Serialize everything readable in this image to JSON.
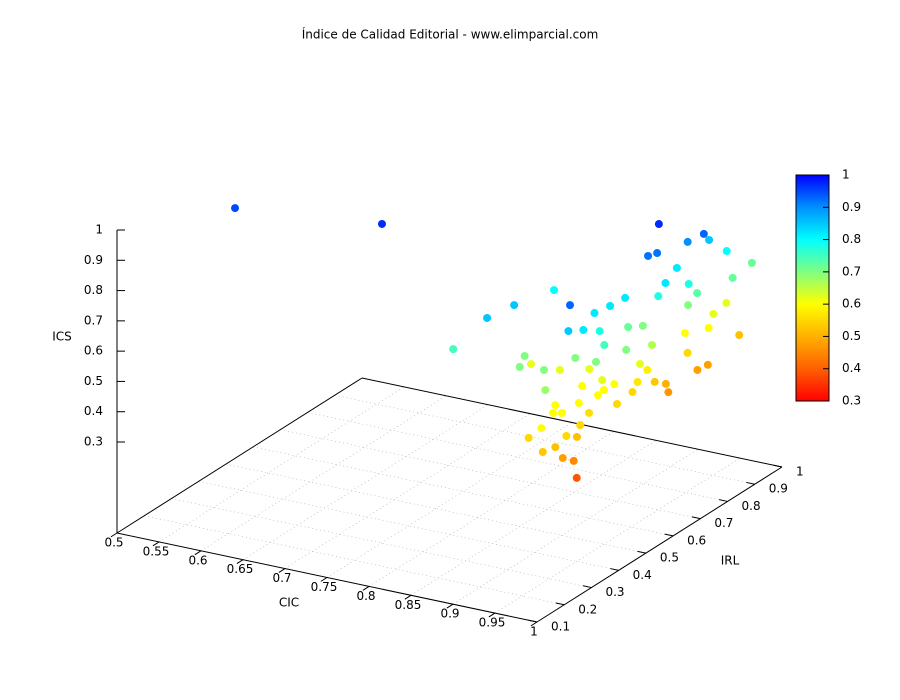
{
  "chart_data": {
    "type": "scatter3d",
    "title": "Índice de Calidad Editorial - www.elimparcial.com",
    "xlabel": "CIC",
    "ylabel": "IRL",
    "zlabel": "ICS",
    "xlim": [
      0.5,
      1
    ],
    "xticks": [
      0.5,
      0.55,
      0.6,
      0.65,
      0.7,
      0.75,
      0.8,
      0.85,
      0.9,
      0.95,
      1
    ],
    "ylim": [
      0.1,
      1
    ],
    "yticks": [
      0.1,
      0.2,
      0.3,
      0.4,
      0.5,
      0.6,
      0.7,
      0.8,
      0.9,
      1
    ],
    "zlim": [
      0.3,
      1
    ],
    "zticks": [
      0.3,
      0.4,
      0.5,
      0.6,
      0.7,
      0.8,
      0.9,
      1
    ],
    "grid": true,
    "colorbar": {
      "lim": [
        0.3,
        1
      ],
      "ticks": [
        0.3,
        0.4,
        0.5,
        0.6,
        0.7,
        0.8,
        0.9,
        1
      ],
      "palette": [
        "#ff0000",
        "#ff6000",
        "#ffb000",
        "#ffff00",
        "#80ff80",
        "#00ffff",
        "#0090ff",
        "#0000ff"
      ]
    },
    "series": [
      {
        "x": [
          0.553,
          0.715,
          0.861,
          0.89,
          0.896,
          0.889,
          0.98,
          0.962,
          0.999,
          0.983,
          0.978,
          0.988,
          0.993,
          0.997,
          0.976,
          0.98,
          0.976,
          0.987,
          0.992,
          0.991,
          0.972,
          0.97,
          0.966,
          0.98,
          0.981,
          0.984,
          0.988,
          0.998,
          0.981,
          0.995,
          0.99,
          0.993,
          0.995,
          0.993,
          0.994,
          0.993,
          0.995,
          0.99,
          0.999,
          0.964,
          0.93,
          0.971,
          0.967,
          0.984,
          0.985,
          0.976,
          0.987,
          0.968,
          0.992,
          0.992,
          0.999,
          0.996,
          0.997,
          0.997,
          0.998,
          0.999,
          0.913,
          0.924,
          0.95,
          0.961,
          0.985,
          0.995,
          0.976,
          0.994,
          0.99,
          0.979,
          0.973,
          0.982,
          0.987,
          0.896,
          0.982,
          0.955,
          0.993,
          0.991,
          0.991,
          0.989,
          0.996,
          0.991
        ],
        "y": [
          0.37,
          0.41,
          0.221,
          0.256,
          0.337,
          0.505,
          0.283,
          0.665,
          0.716,
          0.706,
          0.8,
          0.834,
          0.911,
          0.828,
          0.582,
          0.603,
          0.688,
          0.612,
          0.682,
          0.716,
          0.51,
          0.461,
          0.416,
          0.332,
          0.274,
          0.845,
          0.785,
          0.849,
          0.702,
          0.746,
          0.684,
          0.711,
          0.743,
          0.595,
          0.601,
          0.554,
          0.485,
          0.415,
          0.397,
          0.377,
          0.4,
          0.22,
          0.269,
          0.241,
          0.3,
          0.233,
          0.156,
          0.168,
          0.146,
          0.192,
          0.211,
          0.271,
          0.256,
          0.204,
          0.241,
          0.249,
          0.323,
          0.271,
          0.28,
          0.361,
          0.363,
          0.443,
          0.563,
          0.541,
          0.378,
          0.395,
          0.518,
          0.601,
          0.695,
          0.399,
          0.395,
          0.431,
          0.5,
          0.352,
          0.319,
          0.38,
          0.463,
          0.533
        ],
        "z": [
          0.95,
          0.97,
          0.75,
          0.85,
          0.85,
          0.8,
          0.93,
          0.97,
          0.93,
          0.9,
          0.85,
          0.8,
          0.72,
          0.72,
          0.92,
          0.92,
          0.82,
          0.82,
          0.78,
          0.73,
          0.82,
          0.82,
          0.82,
          0.82,
          0.85,
          0.62,
          0.62,
          0.52,
          0.6,
          0.6,
          0.55,
          0.48,
          0.48,
          0.5,
          0.47,
          0.53,
          0.57,
          0.6,
          0.55,
          0.6,
          0.62,
          0.68,
          0.6,
          0.6,
          0.6,
          0.6,
          0.6,
          0.55,
          0.53,
          0.52,
          0.55,
          0.55,
          0.52,
          0.48,
          0.45,
          0.39,
          0.7,
          0.7,
          0.7,
          0.7,
          0.7,
          0.7,
          0.7,
          0.66,
          0.75,
          0.78,
          0.72,
          0.78,
          0.7,
          0.62,
          0.62,
          0.62,
          0.62,
          0.6,
          0.56,
          0.6,
          0.55,
          0.58
        ]
      }
    ]
  }
}
